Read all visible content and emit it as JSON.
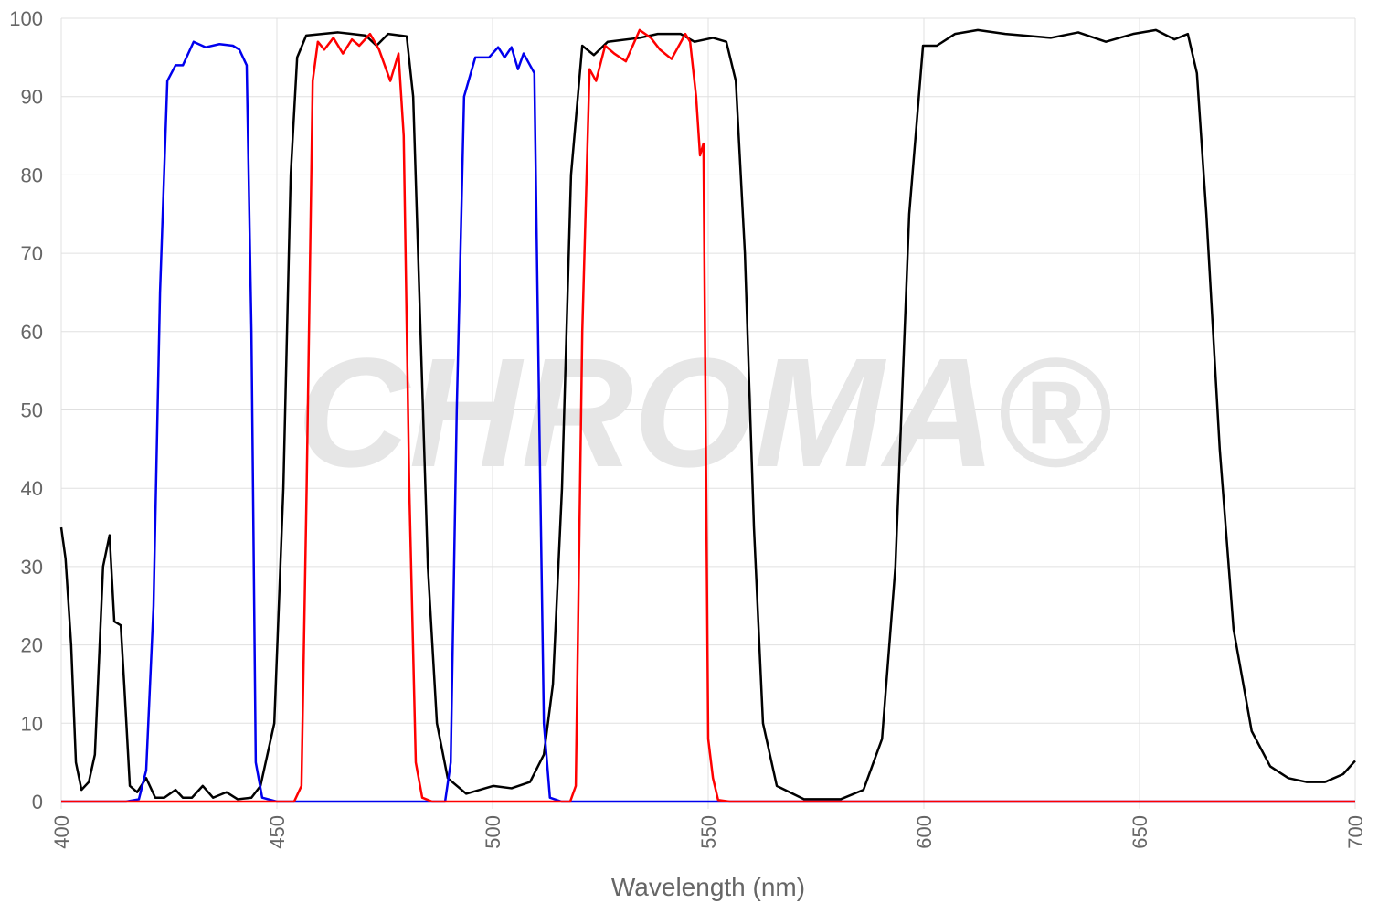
{
  "chart_data": {
    "type": "line",
    "xlabel": "Wavelength (nm)",
    "watermark": "CHROMA®",
    "xlim": [
      400,
      700
    ],
    "xticks": [
      400,
      450,
      500,
      550,
      600,
      650,
      700
    ],
    "ylim": [
      0,
      100
    ],
    "yticks": [
      0,
      10,
      20,
      30,
      40,
      50,
      60,
      70,
      80,
      90,
      100
    ],
    "grid": true,
    "series": [
      {
        "color": "#000000",
        "x": [
          400,
          401,
          402.3,
          403.4,
          404.7,
          406.4,
          407.8,
          409.7,
          411.2,
          412.3,
          413.8,
          414.6,
          415.9,
          417.6,
          419.7,
          421.8,
          423.9,
          426.5,
          428.2,
          430.3,
          432.8,
          435.2,
          438.3,
          440.9,
          444.1,
          446.2,
          449.4,
          451.5,
          453.2,
          454.7,
          456.8,
          464.2,
          470.6,
          473.1,
          475.8,
          480.1,
          481.6,
          483.3,
          485,
          487.1,
          489.6,
          493.9,
          500.2,
          504.4,
          508.7,
          511.9,
          514,
          516.1,
          518.2,
          520.8,
          523.5,
          526.7,
          534.1,
          538.3,
          543.6,
          546.8,
          551.1,
          554.2,
          556.4,
          558.5,
          560.6,
          562.7,
          565.9,
          572.2,
          580.7,
          586,
          590.3,
          593.4,
          596.6,
          599.8,
          603,
          607.2,
          612.5,
          618.9,
          629.4,
          635.8,
          642.2,
          648.5,
          653.8,
          658.1,
          661.2,
          663.3,
          665.5,
          668.6,
          671.8,
          676,
          680.3,
          684.5,
          688.7,
          693,
          697.2,
          700
        ],
        "values": [
          35,
          31,
          20,
          5,
          1.5,
          2.5,
          6,
          30,
          34,
          23,
          22.5,
          15,
          2,
          1.2,
          3,
          0.5,
          0.5,
          1.5,
          0.5,
          0.5,
          2,
          0.5,
          1.2,
          0.3,
          0.5,
          2,
          10,
          40,
          80,
          95,
          97.8,
          98.2,
          97.8,
          96.5,
          98,
          97.7,
          90,
          60,
          30,
          10,
          3,
          1,
          2,
          1.7,
          2.5,
          6,
          15,
          40,
          80,
          96.5,
          95.3,
          97,
          97.5,
          98,
          98,
          97,
          97.5,
          97,
          92,
          70,
          35,
          10,
          2,
          0.3,
          0.3,
          1.5,
          8,
          30,
          75,
          96.5,
          96.5,
          98,
          98.5,
          98,
          97.5,
          98.2,
          97,
          98,
          98.5,
          97.3,
          98,
          93,
          75,
          45,
          22,
          9,
          4.5,
          3,
          2.5,
          2.5,
          3.5,
          5.2
        ]
      },
      {
        "color": "#0000ee",
        "x": [
          400,
          415,
          418,
          419.7,
          421.4,
          422.9,
          424.6,
          426.5,
          428.2,
          430.7,
          433.5,
          436.7,
          439.8,
          441.3,
          443,
          444.1,
          445.1,
          446.6,
          450,
          489,
          490.3,
          491.7,
          493.4,
          496,
          497.7,
          499.2,
          501.3,
          502.8,
          504.4,
          505.9,
          507.2,
          508.7,
          509.7,
          510.8,
          511.9,
          513.3,
          516,
          700
        ],
        "values": [
          0,
          0,
          0.3,
          4,
          25,
          65,
          92,
          94,
          94,
          97,
          96.3,
          96.7,
          96.5,
          96,
          94,
          60,
          5,
          0.5,
          0,
          0,
          5,
          50,
          90,
          95,
          95,
          95,
          96.3,
          95,
          96.3,
          93.5,
          95.5,
          94,
          93,
          50,
          10,
          0.5,
          0,
          0
        ]
      },
      {
        "color": "#ff0000",
        "x": [
          400,
          454,
          455.7,
          456.9,
          458.3,
          459.5,
          461,
          463.1,
          465.3,
          467.4,
          469.1,
          471.6,
          473.7,
          476.3,
          478.2,
          479.4,
          480.7,
          482.2,
          483.7,
          486,
          518,
          519.3,
          520.8,
          522.5,
          524,
          526.1,
          528.2,
          530.9,
          534.1,
          536.7,
          538.8,
          541.5,
          544.7,
          545.8,
          547.2,
          548.1,
          548.9,
          550,
          551.1,
          552.3,
          555,
          700
        ],
        "values": [
          0,
          0,
          2,
          40,
          92,
          97,
          96,
          97.5,
          95.5,
          97.3,
          96.5,
          98,
          96,
          92,
          95.5,
          85,
          40,
          5,
          0.5,
          0,
          0,
          2,
          60,
          93.5,
          92,
          96.5,
          95.5,
          94.5,
          98.5,
          97.5,
          96,
          94.8,
          98,
          97,
          90,
          82.5,
          84,
          8,
          3,
          0.2,
          0,
          0
        ]
      }
    ]
  }
}
